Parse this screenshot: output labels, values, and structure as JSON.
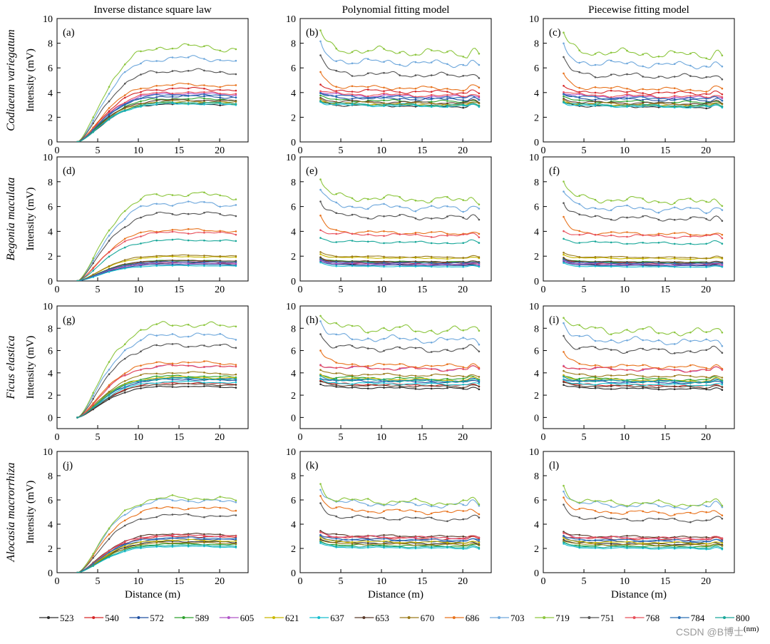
{
  "chart_data": {
    "type": "line",
    "column_titles": [
      "Inverse distance square law",
      "Polynomial fitting model",
      "Piecewise fitting model"
    ],
    "row_species": [
      "Codiaeum variegatum",
      "Begonia maculata",
      "Ficus elastica",
      "Alocasia macrorrhiza"
    ],
    "panel_labels": [
      "(a)",
      "(b)",
      "(c)",
      "(d)",
      "(e)",
      "(f)",
      "(g)",
      "(h)",
      "(i)",
      "(j)",
      "(k)",
      "(l)"
    ],
    "ylabel": "Intensity (mV)",
    "xlabel": "Distance (m)",
    "xlim": [
      0,
      23.5
    ],
    "ylim_default": [
      0,
      10
    ],
    "ylim_ficus": [
      -1,
      10
    ],
    "xticks": [
      0,
      5,
      10,
      15,
      20
    ],
    "yticks": [
      0,
      2,
      4,
      6,
      8,
      10
    ],
    "x_range_data": [
      2.5,
      22
    ],
    "legend_unit": "(nm)",
    "series": [
      {
        "name": "523",
        "color": "#2b2b2b"
      },
      {
        "name": "540",
        "color": "#d62728"
      },
      {
        "name": "572",
        "color": "#1f4fa0"
      },
      {
        "name": "589",
        "color": "#2ca02c"
      },
      {
        "name": "605",
        "color": "#b054c8"
      },
      {
        "name": "621",
        "color": "#c9b800"
      },
      {
        "name": "637",
        "color": "#17becf"
      },
      {
        "name": "653",
        "color": "#5a3a2a"
      },
      {
        "name": "670",
        "color": "#9a7b1a"
      },
      {
        "name": "686",
        "color": "#e8731e"
      },
      {
        "name": "703",
        "color": "#6fa8dc"
      },
      {
        "name": "719",
        "color": "#8dc63f"
      },
      {
        "name": "751",
        "color": "#555555"
      },
      {
        "name": "768",
        "color": "#e8505b"
      },
      {
        "name": "784",
        "color": "#2a6fb5"
      },
      {
        "name": "800",
        "color": "#1aa89a"
      }
    ],
    "plateau_levels": {
      "Codiaeum variegatum": [
        3.0,
        4.2,
        3.6,
        3.4,
        3.8,
        3.1,
        3.0,
        3.3,
        3.2,
        4.5,
        6.6,
        7.5,
        5.6,
        3.9,
        3.7,
        3.1
      ],
      "Begonia maculata": [
        1.4,
        1.5,
        1.3,
        1.6,
        1.4,
        1.9,
        1.2,
        1.6,
        2.0,
        4.0,
        6.1,
        6.8,
        5.3,
        3.8,
        1.5,
        3.2
      ],
      "Ficus elastica": [
        2.7,
        3.0,
        3.3,
        3.6,
        4.5,
        3.5,
        3.1,
        2.9,
        3.9,
        4.8,
        7.2,
        8.1,
        6.3,
        4.5,
        3.4,
        3.4
      ],
      "Alocasia macrorrhiza": [
        2.5,
        2.9,
        2.7,
        2.3,
        3.0,
        2.6,
        2.1,
        3.1,
        2.4,
        5.2,
        5.8,
        6.0,
        4.6,
        3.0,
        2.8,
        2.2
      ]
    }
  },
  "watermark": "CSDN @B博士"
}
